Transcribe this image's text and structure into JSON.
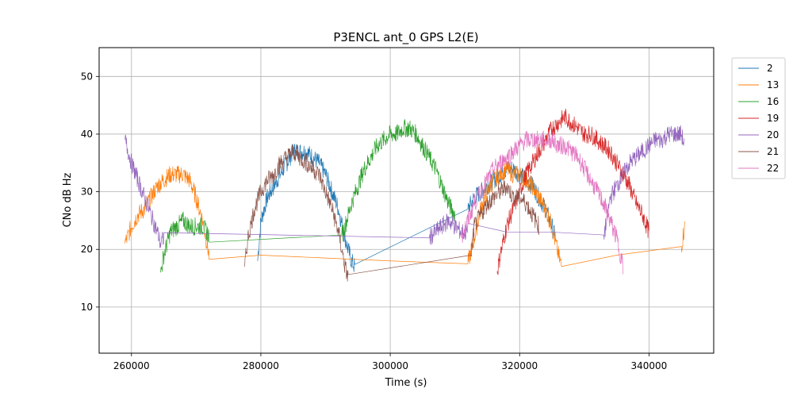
{
  "chart_data": {
    "type": "line",
    "title": "P3ENCL ant_0 GPS L2(E)",
    "xlabel": "Time (s)",
    "ylabel": "CNo dB Hz",
    "xlim": [
      255000,
      350000
    ],
    "ylim": [
      2,
      55
    ],
    "xticks": [
      260000,
      280000,
      300000,
      320000,
      340000
    ],
    "yticks": [
      10,
      20,
      30,
      40,
      50
    ],
    "grid": true,
    "legend_position": "outside-top-right",
    "series": [
      {
        "name": "2",
        "color": "#1f77b4",
        "x": [
          279500,
          280000,
          281000,
          282000,
          283000,
          284000,
          285000,
          286000,
          287000,
          288000,
          289000,
          290000,
          291000,
          292000,
          293000,
          294000,
          294500,
          312000,
          313000,
          314000,
          315000,
          316000,
          317000,
          318000,
          319000,
          320000,
          321000,
          322000,
          323000,
          324000,
          325000,
          325500
        ],
        "y": [
          18,
          25,
          29,
          31,
          33,
          35,
          37,
          37,
          37,
          36,
          35,
          33,
          30,
          27,
          22,
          18,
          17,
          27,
          29,
          30,
          31,
          32,
          33,
          34,
          34,
          33,
          32,
          31,
          29,
          27,
          24,
          22
        ]
      },
      {
        "name": "13",
        "color": "#ff7f0e",
        "x": [
          259000,
          260000,
          261000,
          262000,
          263000,
          264000,
          265000,
          266000,
          267000,
          268000,
          269000,
          270000,
          271000,
          272000,
          280000,
          290000,
          300000,
          312000,
          313000,
          314000,
          315000,
          316000,
          317000,
          318000,
          319000,
          320000,
          321000,
          322000,
          323000,
          324000,
          325000,
          326000,
          326500,
          335000,
          345000,
          345500
        ],
        "y": [
          21,
          24,
          26,
          27,
          29,
          31,
          32,
          33,
          33,
          33,
          32,
          29,
          25,
          19,
          19,
          18.5,
          18,
          17.5,
          22,
          27,
          30,
          32,
          33,
          34,
          33,
          33,
          32,
          31,
          29,
          27,
          24,
          19,
          17,
          19,
          20.5,
          24
        ]
      },
      {
        "name": "16",
        "color": "#2ca02c",
        "x": [
          264500,
          265000,
          265500,
          266000,
          267000,
          268000,
          269000,
          270000,
          271000,
          272000,
          292500,
          293000,
          294000,
          295000,
          296000,
          297000,
          298000,
          299000,
          300000,
          301000,
          302000,
          303000,
          304000,
          305000,
          306000,
          307000,
          308000,
          309000,
          310000
        ],
        "y": [
          16,
          19,
          21,
          23,
          24,
          25,
          24,
          24,
          24,
          22.5,
          22.5,
          24,
          28,
          31,
          34,
          36,
          38,
          39,
          40,
          40,
          41,
          41,
          40,
          38,
          36,
          34,
          31,
          28,
          26
        ]
      },
      {
        "name": "19",
        "color": "#d62728",
        "x": [
          316500,
          317000,
          318000,
          319000,
          320000,
          321000,
          322000,
          323000,
          324000,
          325000,
          326000,
          327000,
          328000,
          329000,
          330000,
          331000,
          332000,
          333000,
          334000,
          335000,
          336000,
          337000,
          338000,
          339000,
          340000
        ],
        "y": [
          16,
          19,
          24,
          27,
          30,
          33,
          35,
          37,
          39,
          41,
          42,
          43,
          42,
          41,
          40,
          40,
          39,
          38,
          37,
          35,
          33,
          31,
          28,
          26,
          23
        ]
      },
      {
        "name": "20",
        "color": "#9467bd",
        "x": [
          259000,
          260000,
          261000,
          262000,
          263000,
          264000,
          264500,
          265000,
          306000,
          307000,
          308000,
          309000,
          310000,
          311000,
          312000,
          318000,
          325000,
          333000,
          333500,
          334000,
          335000,
          336000,
          337000,
          338000,
          339000,
          340000,
          341000,
          342000,
          343000,
          344000,
          345000,
          345500
        ],
        "y": [
          39,
          35,
          32,
          29,
          26,
          23,
          21,
          22,
          22,
          23,
          24,
          25,
          24,
          23,
          23,
          23,
          23,
          22.5,
          25,
          29,
          31,
          33,
          35,
          36,
          37,
          38,
          39,
          39,
          40,
          40,
          40,
          38
        ]
      },
      {
        "name": "21",
        "color": "#8c564b",
        "x": [
          277500,
          278000,
          279000,
          280000,
          281000,
          282000,
          283000,
          284000,
          285000,
          286000,
          287000,
          288000,
          289000,
          290000,
          291000,
          292000,
          293000,
          293500,
          312500,
          313000,
          314000,
          315000,
          316000,
          317000,
          318000,
          319000,
          320000,
          321000,
          322000,
          323000
        ],
        "y": [
          17,
          22,
          27,
          30,
          32,
          33,
          35,
          36,
          37,
          36,
          35,
          34,
          33,
          30,
          27,
          23,
          17,
          15,
          19,
          24,
          26,
          28,
          29,
          30,
          31,
          29,
          29,
          28,
          26,
          24
        ]
      },
      {
        "name": "22",
        "color": "#e377c2",
        "x": [
          311000,
          312000,
          313000,
          314000,
          315000,
          316000,
          317000,
          318000,
          319000,
          320000,
          321000,
          322000,
          323000,
          324000,
          325000,
          326000,
          327000,
          328000,
          329000,
          330000,
          331000,
          332000,
          333000,
          334000,
          335000,
          336000
        ],
        "y": [
          22,
          25,
          28,
          30,
          32,
          34,
          35,
          36,
          37,
          38,
          39,
          39,
          39,
          39,
          39,
          38,
          38,
          37,
          36,
          34,
          32,
          30,
          28,
          25,
          22,
          17
        ]
      }
    ]
  }
}
